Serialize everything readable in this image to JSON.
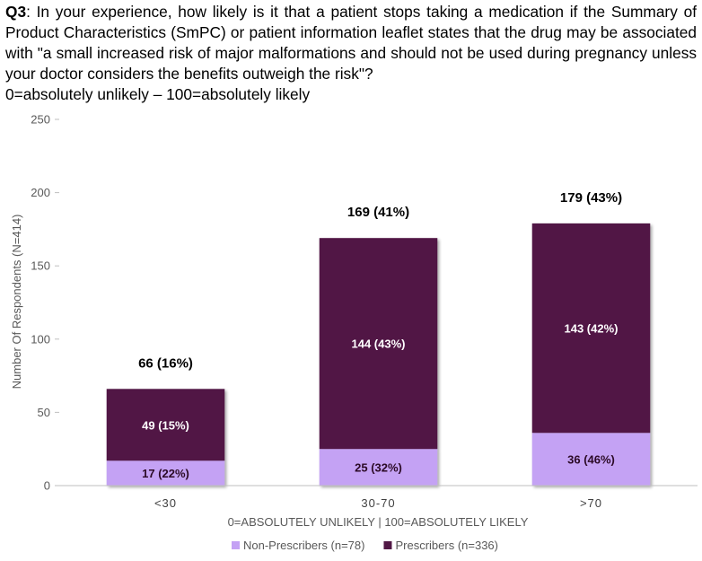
{
  "question": {
    "id": "Q3",
    "text": ": In your experience, how likely is it that a patient stops taking a medication if the Summary of Product Characteristics (SmPC) or patient information leaflet states that the drug may be associated with \"a small increased risk of major malformations and should not be used during pregnancy unless your doctor considers the benefits outweigh the risk\"?",
    "scale": "0=absolutely unlikely – 100=absolutely likely"
  },
  "chart_data": {
    "type": "bar",
    "stacked": true,
    "categories": [
      "<30",
      "30-70",
      ">70"
    ],
    "series": [
      {
        "name": "Non-Prescribers (n=78)",
        "color": "#c4a2f4",
        "values": [
          17,
          25,
          36
        ],
        "labels": [
          "17 (22%)",
          "25 (32%)",
          "36 (46%)"
        ]
      },
      {
        "name": "Prescribers (n=336)",
        "color": "#511845",
        "values": [
          49,
          144,
          143
        ],
        "labels": [
          "49 (15%)",
          "144 (43%)",
          "143 (42%)"
        ]
      }
    ],
    "totals": [
      66,
      169,
      179
    ],
    "total_labels": [
      "66 (16%)",
      "169 (41%)",
      "179 (43%)"
    ],
    "xlabel": "0=ABSOLUTELY UNLIKELY | 100=ABSOLUTELY LIKELY",
    "ylabel": "Number Of Respondents (N=414)",
    "ylim": [
      0,
      250
    ],
    "yticks": [
      0,
      50,
      100,
      150,
      200,
      250
    ],
    "grid": false,
    "legend_position": "bottom"
  }
}
